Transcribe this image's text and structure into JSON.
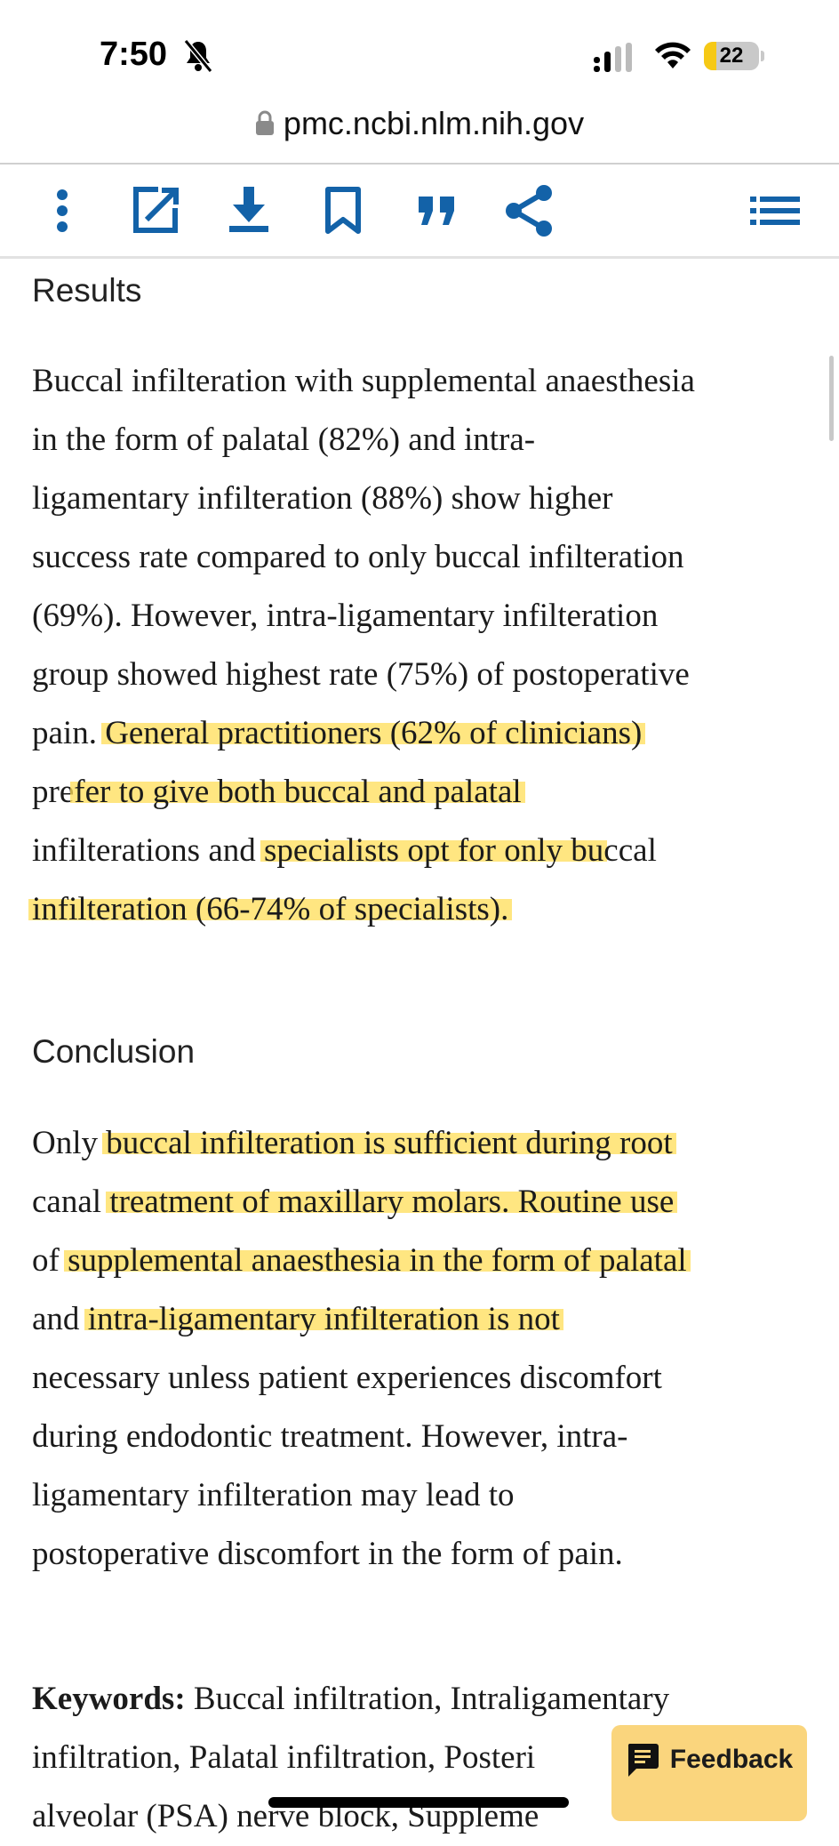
{
  "status_bar": {
    "time": "7:50",
    "battery": "22",
    "battery_level_percent": 22,
    "battery_color": "#f6c915"
  },
  "browser": {
    "url": "pmc.ncbi.nlm.nih.gov"
  },
  "toolbar": {
    "icons": [
      "more-vertical-icon",
      "open-external-icon",
      "download-icon",
      "bookmark-icon",
      "cite-quote-icon",
      "share-icon",
      "table-of-contents-icon"
    ],
    "accent_color": "#1362a8"
  },
  "results": {
    "heading": "Results",
    "lines": [
      [
        {
          "t": "Buccal infilteration with supplemental anaesthesia"
        }
      ],
      [
        {
          "t": "in the form of palatal (82%) and intra-"
        }
      ],
      [
        {
          "t": "ligamentary infilteration (88%) show higher"
        }
      ],
      [
        {
          "t": "success rate compared to only buccal infilteration"
        }
      ],
      [
        {
          "t": "(69%). However, intra-ligamentary infilteration"
        }
      ],
      [
        {
          "t": "group showed highest rate (75%) of postoperative"
        }
      ],
      [
        {
          "t": "pain. "
        },
        {
          "t": "General practitioners (62% of clinicians)",
          "h": true
        }
      ],
      [
        {
          "t": "pre"
        },
        {
          "t": "fer to give both buccal and palatal",
          "h": true
        }
      ],
      [
        {
          "t": "infilterations and "
        },
        {
          "t": "specialists opt for only bu",
          "h": true
        },
        {
          "t": "ccal"
        }
      ],
      [
        {
          "t": "infilteration (66-74% of specialists).",
          "h": true
        }
      ]
    ]
  },
  "conclusion": {
    "heading": "Conclusion",
    "lines": [
      [
        {
          "t": "Only "
        },
        {
          "t": "buccal infilteration is sufficient during root",
          "h": true
        }
      ],
      [
        {
          "t": "canal "
        },
        {
          "t": "treatment of maxillary molars. Routine use",
          "h": true
        }
      ],
      [
        {
          "t": "of "
        },
        {
          "t": "supplemental anaesthesia in the form of palatal",
          "h": true
        }
      ],
      [
        {
          "t": "and "
        },
        {
          "t": "intra-ligamentary infilteration is not",
          "h": true
        }
      ],
      [
        {
          "t": "necessary unless patient experiences discomfort"
        }
      ],
      [
        {
          "t": "during endodontic treatment. However, intra-"
        }
      ],
      [
        {
          "t": "ligamentary infilteration may lead to"
        }
      ],
      [
        {
          "t": "postoperative discomfort in the form of pain."
        }
      ]
    ]
  },
  "keywords": {
    "label": "Keywords:",
    "lines": [
      " Buccal infiltration, Intraligamentary",
      "infiltration, Palatal infiltration, Posteri",
      "alveolar (PSA) nerve block, Suppleme"
    ]
  },
  "highlight_color": "#ffdd57",
  "feedback": {
    "label": "Feedback",
    "color": "#fad57d"
  }
}
